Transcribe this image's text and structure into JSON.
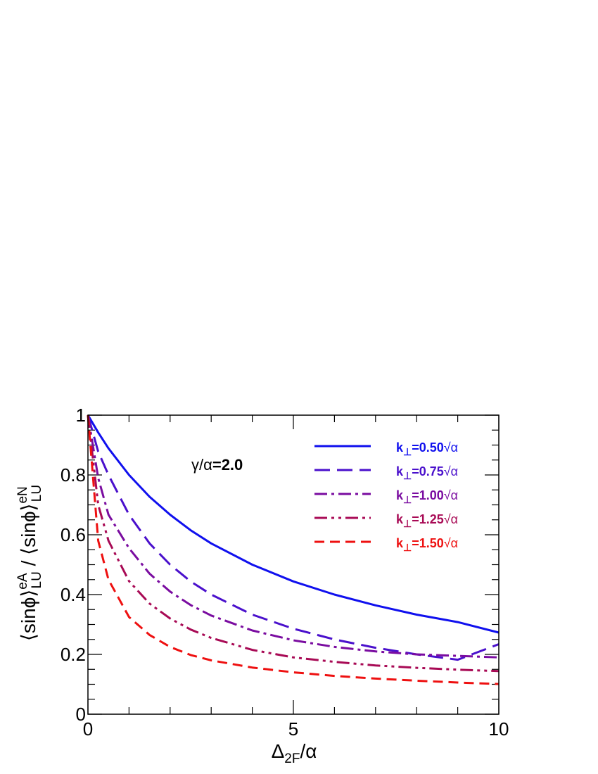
{
  "chart_data": {
    "type": "line",
    "xlabel": {
      "main": "Δ",
      "sub": "2F",
      "rest": "/α"
    },
    "ylabel": {
      "num_main": "⟨sinϕ⟩",
      "num_sup": "eA",
      "num_sub": "LU",
      "slash": " / ",
      "den_main": "⟨sinϕ⟩",
      "den_sup": "eN",
      "den_sub": "LU"
    },
    "xlim": [
      0,
      10
    ],
    "ylim": [
      0,
      1
    ],
    "x_ticks": [
      0,
      5,
      10
    ],
    "x_tick_labels": [
      "0",
      "5",
      "10"
    ],
    "y_ticks": [
      0,
      0.2,
      0.4,
      0.6,
      0.8,
      1
    ],
    "y_tick_labels": [
      "0",
      "0.2",
      "0.4",
      "0.6",
      "0.8",
      "1"
    ],
    "grid": false,
    "legend_position": "top-right",
    "annotation": {
      "prefix": "γ/α",
      "value": "=2.0"
    },
    "x": [
      0,
      0.25,
      0.5,
      1,
      1.5,
      2,
      2.5,
      3,
      4,
      5,
      6,
      7,
      8,
      9,
      10
    ],
    "series": [
      {
        "name": "k⊥=0.50√α",
        "label_k": "k",
        "label_perp": "⊥",
        "label_val": "=0.50",
        "label_unit": "√α",
        "color": "#1010ee",
        "dash": "",
        "values": [
          1.0,
          0.942,
          0.889,
          0.8,
          0.727,
          0.667,
          0.615,
          0.571,
          0.5,
          0.444,
          0.4,
          0.364,
          0.333,
          0.308,
          0.273
        ]
      },
      {
        "name": "k⊥=0.75√α",
        "label_k": "k",
        "label_perp": "⊥",
        "label_val": "=0.75",
        "label_unit": "√α",
        "color": "#4a10cc",
        "dash": "22,10",
        "values": [
          1.0,
          0.878,
          0.8,
          0.667,
          0.571,
          0.5,
          0.444,
          0.4,
          0.333,
          0.286,
          0.25,
          0.222,
          0.2,
          0.182,
          0.234
        ]
      },
      {
        "name": "k⊥=1.00√α",
        "label_k": "k",
        "label_perp": "⊥",
        "label_val": "=1.00",
        "label_unit": "√α",
        "color": "#7a0ca0",
        "dash": "18,6,4,6",
        "values": [
          1.0,
          0.79,
          0.667,
          0.555,
          0.47,
          0.41,
          0.365,
          0.33,
          0.28,
          0.247,
          0.225,
          0.21,
          0.2,
          0.195,
          0.19
        ]
      },
      {
        "name": "k⊥=1.25√α",
        "label_k": "k",
        "label_perp": "⊥",
        "label_val": "=1.25",
        "label_unit": "√α",
        "color": "#a80a55",
        "dash": "18,6,4,6,4,6",
        "values": [
          1.0,
          0.7,
          0.58,
          0.445,
          0.37,
          0.32,
          0.283,
          0.255,
          0.215,
          0.19,
          0.175,
          0.163,
          0.155,
          0.149,
          0.144
        ]
      },
      {
        "name": "k⊥=1.50√α",
        "label_k": "k",
        "label_perp": "⊥",
        "label_val": "=1.50",
        "label_unit": "√α",
        "color": "#ee1010",
        "dash": "14,8",
        "values": [
          1.0,
          0.58,
          0.45,
          0.325,
          0.265,
          0.225,
          0.198,
          0.18,
          0.156,
          0.14,
          0.128,
          0.119,
          0.112,
          0.106,
          0.101
        ]
      }
    ]
  }
}
